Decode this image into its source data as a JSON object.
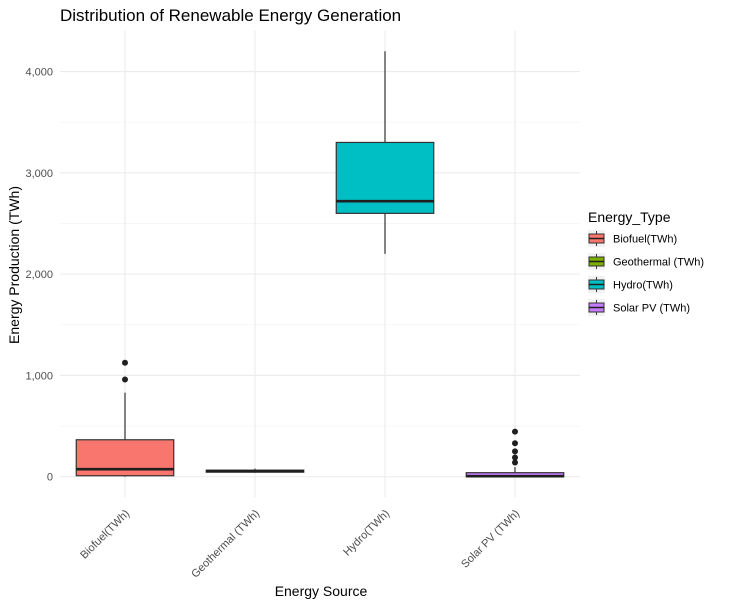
{
  "chart_data": {
    "type": "box",
    "title": "Distribution of Renewable Energy Generation",
    "xlabel": "Energy Source",
    "ylabel": "Energy Production (TWh)",
    "ylim": [
      -200,
      4400
    ],
    "yticks": [
      0,
      1000,
      2000,
      3000,
      4000
    ],
    "ytick_labels": [
      "0",
      "1,000",
      "2,000",
      "3,000",
      "4,000"
    ],
    "grid": true,
    "legend": {
      "title": "Energy_Type",
      "position": "right"
    },
    "categories": [
      "Biofuel(TWh)",
      "Geothermal (TWh)",
      "Hydro(TWh)",
      "Solar PV (TWh)"
    ],
    "series": [
      {
        "name": "Biofuel(TWh)",
        "color": "#F8766D",
        "min": 0,
        "q1": 10,
        "median": 75,
        "q3": 365,
        "max": 830,
        "outliers": [
          960,
          1125
        ]
      },
      {
        "name": "Geothermal (TWh)",
        "color": "#7CAE00",
        "min": 40,
        "q1": 45,
        "median": 55,
        "q3": 65,
        "max": 80,
        "outliers": []
      },
      {
        "name": "Hydro(TWh)",
        "color": "#00BFC4",
        "min": 2200,
        "q1": 2600,
        "median": 2720,
        "q3": 3300,
        "max": 4200,
        "outliers": []
      },
      {
        "name": "Solar PV (TWh)",
        "color": "#C77CFF",
        "min": 0,
        "q1": 0,
        "median": 5,
        "q3": 40,
        "max": 95,
        "outliers": [
          140,
          190,
          250,
          330,
          445
        ]
      }
    ]
  }
}
